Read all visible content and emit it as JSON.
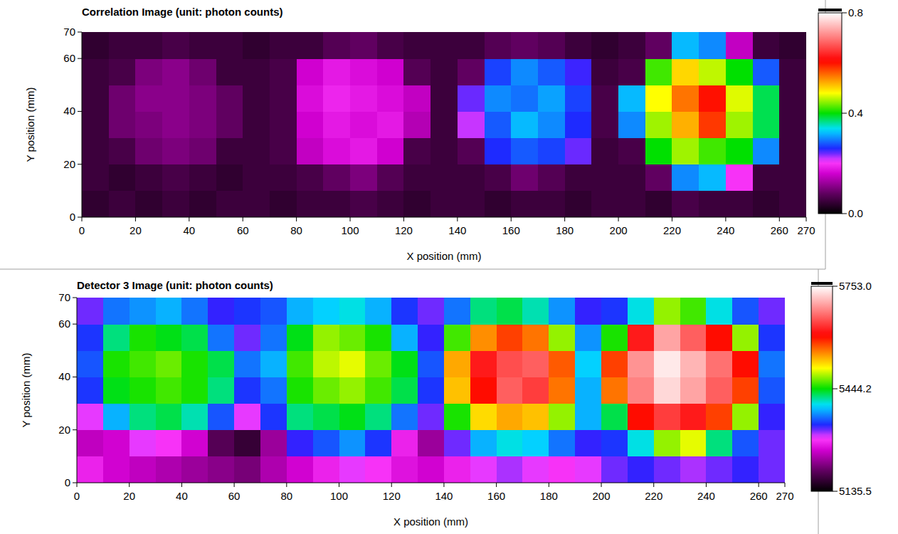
{
  "chart_data": [
    {
      "type": "heatmap",
      "title": "Correlation Image (unit: photon counts)",
      "xlabel": "X position (mm)",
      "ylabel": "Y position (mm)",
      "x": [
        5,
        15,
        25,
        35,
        45,
        55,
        65,
        75,
        85,
        95,
        105,
        115,
        125,
        135,
        145,
        155,
        165,
        175,
        185,
        195,
        205,
        215,
        225,
        235,
        245,
        255,
        265
      ],
      "y": [
        5,
        15,
        25,
        35,
        45,
        55,
        65
      ],
      "cells": [
        [
          0.04,
          0.05,
          0.04,
          0.05,
          0.04,
          0.05,
          0.05,
          0.04,
          0.05,
          0.05,
          0.06,
          0.05,
          0.04,
          0.05,
          0.05,
          0.04,
          0.05,
          0.05,
          0.04,
          0.05,
          0.05,
          0.04,
          0.06,
          0.05,
          0.05,
          0.04,
          0.05
        ],
        [
          0.05,
          0.04,
          0.05,
          0.06,
          0.05,
          0.04,
          0.05,
          0.05,
          0.06,
          0.08,
          0.1,
          0.07,
          0.05,
          0.05,
          0.05,
          0.06,
          0.09,
          0.07,
          0.05,
          0.05,
          0.05,
          0.08,
          0.3,
          0.32,
          0.2,
          0.05,
          0.05
        ],
        [
          0.05,
          0.06,
          0.09,
          0.1,
          0.09,
          0.05,
          0.05,
          0.06,
          0.15,
          0.17,
          0.18,
          0.16,
          0.06,
          0.05,
          0.07,
          0.26,
          0.28,
          0.27,
          0.24,
          0.05,
          0.06,
          0.4,
          0.45,
          0.42,
          0.4,
          0.3,
          0.05
        ],
        [
          0.05,
          0.09,
          0.1,
          0.11,
          0.1,
          0.08,
          0.05,
          0.06,
          0.16,
          0.18,
          0.17,
          0.18,
          0.14,
          0.05,
          0.22,
          0.28,
          0.32,
          0.3,
          0.26,
          0.06,
          0.3,
          0.45,
          0.52,
          0.58,
          0.45,
          0.38,
          0.05
        ],
        [
          0.05,
          0.09,
          0.11,
          0.11,
          0.1,
          0.08,
          0.05,
          0.06,
          0.17,
          0.19,
          0.18,
          0.17,
          0.15,
          0.05,
          0.24,
          0.3,
          0.29,
          0.31,
          0.27,
          0.06,
          0.32,
          0.48,
          0.55,
          0.6,
          0.47,
          0.38,
          0.05
        ],
        [
          0.05,
          0.06,
          0.1,
          0.11,
          0.09,
          0.05,
          0.05,
          0.06,
          0.16,
          0.18,
          0.17,
          0.16,
          0.07,
          0.05,
          0.08,
          0.27,
          0.3,
          0.28,
          0.25,
          0.05,
          0.06,
          0.42,
          0.5,
          0.46,
          0.4,
          0.28,
          0.05
        ],
        [
          0.04,
          0.05,
          0.05,
          0.06,
          0.05,
          0.05,
          0.04,
          0.05,
          0.05,
          0.07,
          0.08,
          0.06,
          0.05,
          0.05,
          0.05,
          0.07,
          0.08,
          0.07,
          0.05,
          0.04,
          0.05,
          0.08,
          0.32,
          0.3,
          0.15,
          0.05,
          0.04
        ]
      ],
      "xlim": [
        0,
        270
      ],
      "ylim": [
        0,
        70
      ],
      "xticks": [
        0,
        20,
        40,
        60,
        80,
        100,
        120,
        140,
        160,
        180,
        200,
        220,
        240,
        260,
        270
      ],
      "yticks": [
        0,
        20,
        40,
        60,
        70
      ],
      "zlim": [
        0,
        0.8
      ],
      "zticks": [
        {
          "value": 0,
          "label": "0.0"
        },
        0.4,
        0.8
      ]
    },
    {
      "type": "heatmap",
      "title": "Detector 3 Image (unit: photon counts)",
      "xlabel": "X position (mm)",
      "ylabel": "Y position (mm)",
      "x": [
        5,
        15,
        25,
        35,
        45,
        55,
        65,
        75,
        85,
        95,
        105,
        115,
        125,
        135,
        145,
        155,
        165,
        175,
        185,
        195,
        205,
        215,
        225,
        235,
        245,
        255,
        265
      ],
      "y": [
        5,
        15,
        25,
        35,
        45,
        55,
        65
      ],
      "cells": [
        [
          5280,
          5260,
          5250,
          5240,
          5230,
          5220,
          5210,
          5240,
          5260,
          5280,
          5300,
          5290,
          5270,
          5260,
          5280,
          5300,
          5310,
          5300,
          5290,
          5300,
          5320,
          5330,
          5320,
          5310,
          5320,
          5330,
          5320
        ],
        [
          5250,
          5260,
          5300,
          5290,
          5260,
          5190,
          5170,
          5230,
          5330,
          5350,
          5370,
          5340,
          5280,
          5230,
          5320,
          5380,
          5400,
          5390,
          5360,
          5330,
          5340,
          5400,
          5480,
          5500,
          5420,
          5350,
          5320
        ],
        [
          5300,
          5380,
          5420,
          5430,
          5410,
          5350,
          5300,
          5340,
          5420,
          5430,
          5440,
          5420,
          5360,
          5320,
          5450,
          5520,
          5540,
          5530,
          5480,
          5380,
          5430,
          5600,
          5640,
          5620,
          5580,
          5480,
          5330
        ],
        [
          5340,
          5440,
          5450,
          5460,
          5450,
          5420,
          5340,
          5360,
          5450,
          5470,
          5480,
          5460,
          5430,
          5340,
          5530,
          5600,
          5660,
          5640,
          5560,
          5380,
          5560,
          5680,
          5730,
          5700,
          5660,
          5580,
          5350
        ],
        [
          5350,
          5450,
          5460,
          5470,
          5450,
          5430,
          5360,
          5380,
          5460,
          5490,
          5500,
          5470,
          5440,
          5350,
          5540,
          5620,
          5650,
          5660,
          5570,
          5390,
          5580,
          5690,
          5740,
          5710,
          5670,
          5600,
          5360
        ],
        [
          5340,
          5420,
          5450,
          5440,
          5430,
          5360,
          5320,
          5360,
          5440,
          5480,
          5470,
          5450,
          5380,
          5330,
          5460,
          5550,
          5580,
          5560,
          5480,
          5370,
          5450,
          5620,
          5700,
          5660,
          5600,
          5480,
          5340
        ],
        [
          5320,
          5360,
          5370,
          5380,
          5360,
          5330,
          5340,
          5350,
          5380,
          5390,
          5400,
          5380,
          5340,
          5320,
          5360,
          5420,
          5430,
          5410,
          5370,
          5330,
          5340,
          5400,
          5480,
          5460,
          5400,
          5350,
          5320
        ]
      ],
      "xlim": [
        0,
        270
      ],
      "ylim": [
        0,
        70
      ],
      "xticks": [
        0,
        20,
        40,
        60,
        80,
        100,
        120,
        140,
        160,
        180,
        200,
        220,
        240,
        260,
        270
      ],
      "yticks": [
        0,
        20,
        40,
        60,
        70
      ],
      "zlim": [
        5135.5,
        5753
      ],
      "zticks": [
        5135.5,
        5444.2,
        {
          "value": 5753,
          "label": "5753.0"
        }
      ]
    }
  ]
}
